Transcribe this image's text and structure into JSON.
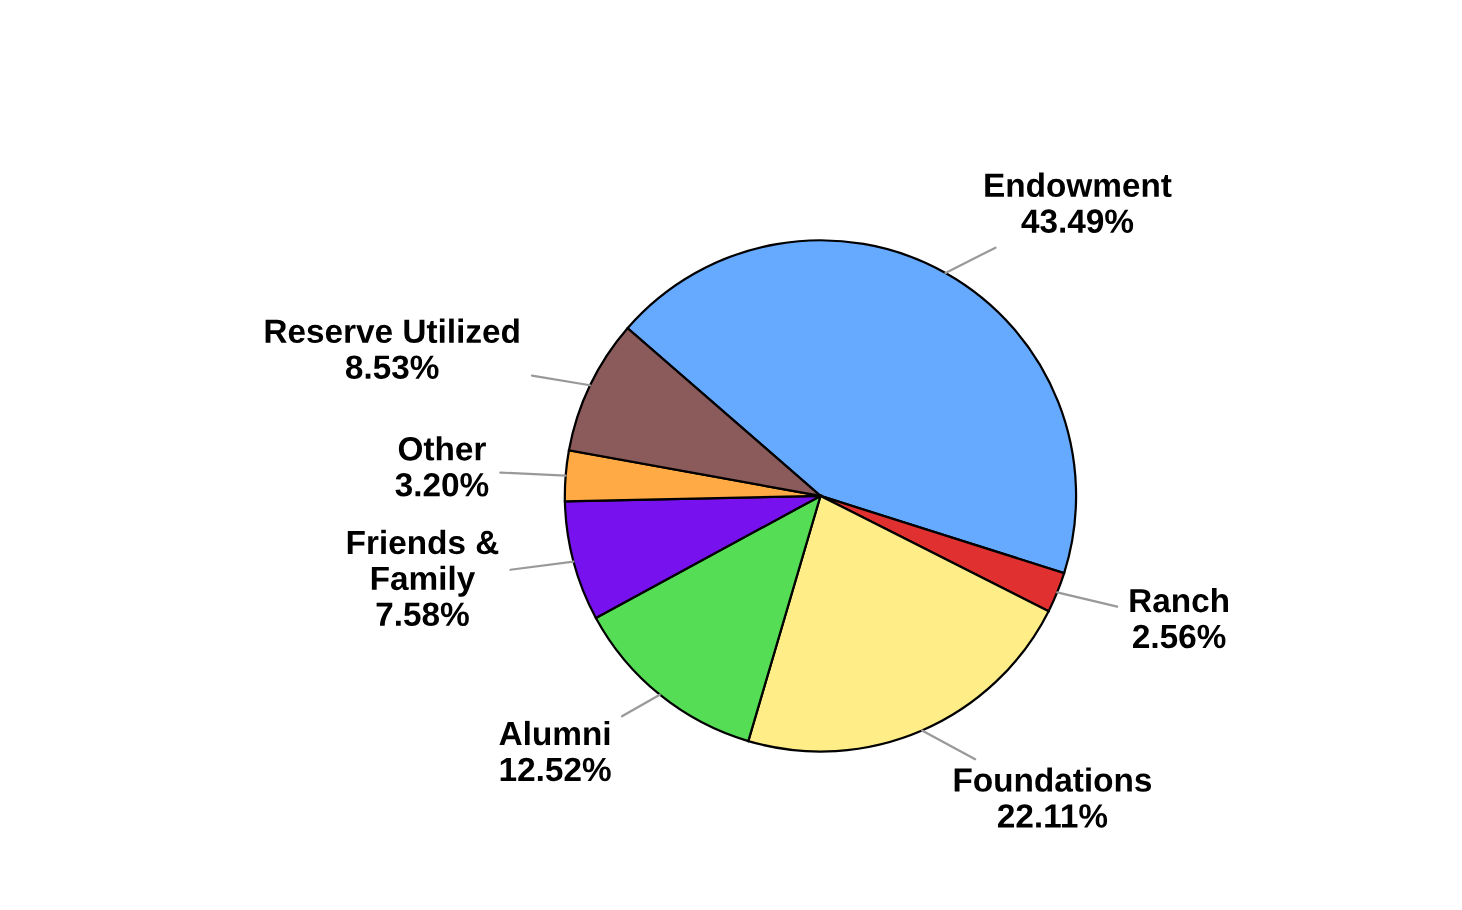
{
  "chart_data": {
    "type": "pie",
    "categories": [
      "Endowment",
      "Ranch",
      "Foundations",
      "Alumni",
      "Friends &\nFamily",
      "Other",
      "Reserve Utilized"
    ],
    "values": [
      43.49,
      2.56,
      22.11,
      12.52,
      7.58,
      3.2,
      8.53
    ],
    "value_labels": [
      "43.49%",
      "2.56%",
      "22.11%",
      "12.52%",
      "7.58%",
      "3.20%",
      "8.53%"
    ],
    "colors": [
      "#66aaff",
      "#e03030",
      "#ffee88",
      "#55dd55",
      "#7711ee",
      "#ffaa44",
      "#8b5a5a"
    ]
  }
}
